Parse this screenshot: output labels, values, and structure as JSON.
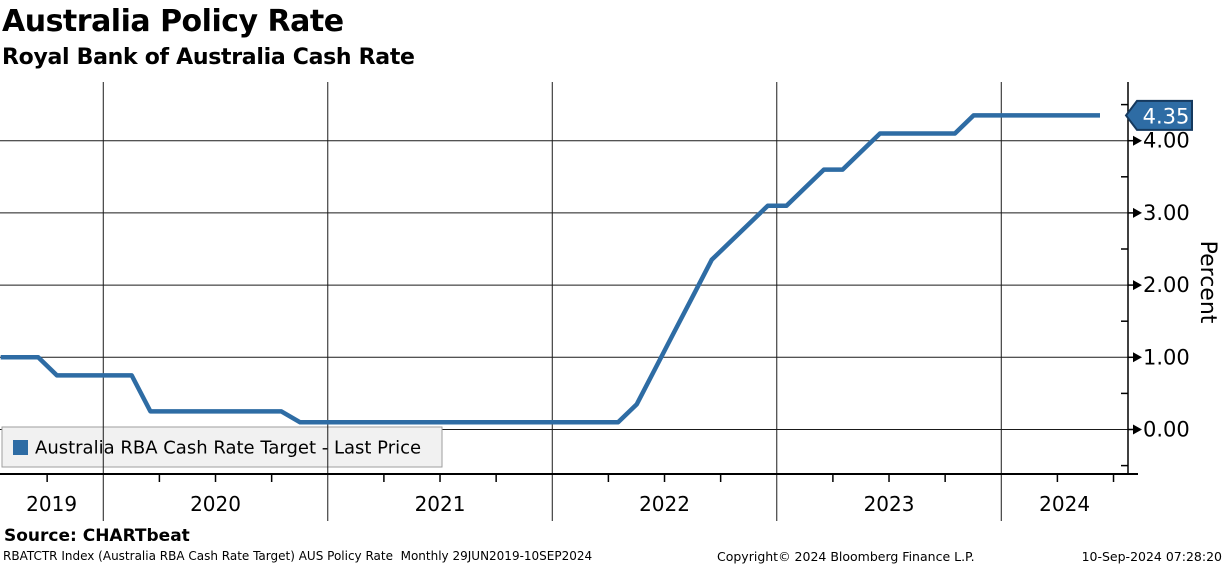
{
  "header": {
    "title": "Australia Policy Rate",
    "subtitle": "Royal Bank of Australia Cash Rate"
  },
  "legend": {
    "label": "Australia RBA Cash Rate Target - Last Price",
    "marker_color": "#2E6CA4"
  },
  "source_line": "Source: CHARTbeat",
  "footer": {
    "left": "RBATCTR Index (Australia RBA Cash Rate Target) AUS Policy Rate  Monthly 29JUN2019-10SEP2024",
    "center": "Copyright© 2024 Bloomberg Finance L.P.",
    "right": "10-Sep-2024 07:28:20"
  },
  "colors": {
    "line": "#2E6CA4",
    "flag_fill": "#2E6CA4",
    "flag_border": "#15395E",
    "flag_text": "#FFFFFF",
    "grid": "#1A1A1A",
    "axis": "#000000",
    "legend_bg": "#F1F1F1",
    "legend_border": "#9E9E9E"
  },
  "chart_data": {
    "type": "line",
    "title": "Australia Policy Rate",
    "subtitle": "Royal Bank of Australia Cash Rate",
    "ylabel": "Percent",
    "xlabel": "",
    "grid": true,
    "legend_position": "bottom-left",
    "last_price": {
      "value": 4.35,
      "label": "4.35"
    },
    "y_axis": {
      "side": "right",
      "ticks": [
        0,
        1,
        2,
        3,
        4
      ],
      "tick_labels": [
        "0.00",
        "1.00",
        "2.00",
        "3.00",
        "4.00"
      ],
      "minor_ticks": [
        -0.5,
        0.5,
        1.5,
        2.5,
        3.5,
        4.5
      ],
      "range_hint": [
        -0.62,
        4.81
      ]
    },
    "x_axis": {
      "range": [
        "2019-06-29",
        "2024-09-10"
      ],
      "year_gridlines": [
        2020,
        2021,
        2022,
        2023,
        2024
      ],
      "year_labels": [
        "2019",
        "2020",
        "2021",
        "2022",
        "2023",
        "2024"
      ],
      "minor_ticks": "quarterly"
    },
    "series": [
      {
        "name": "Australia RBA Cash Rate Target - Last Price",
        "color": "#2E6CA4",
        "points": [
          [
            "2019-07",
            1.0
          ],
          [
            "2019-08",
            1.0
          ],
          [
            "2019-09",
            1.0
          ],
          [
            "2019-10",
            0.75
          ],
          [
            "2019-11",
            0.75
          ],
          [
            "2019-12",
            0.75
          ],
          [
            "2020-01",
            0.75
          ],
          [
            "2020-02",
            0.75
          ],
          [
            "2020-03",
            0.25
          ],
          [
            "2020-04",
            0.25
          ],
          [
            "2020-05",
            0.25
          ],
          [
            "2020-06",
            0.25
          ],
          [
            "2020-07",
            0.25
          ],
          [
            "2020-08",
            0.25
          ],
          [
            "2020-09",
            0.25
          ],
          [
            "2020-10",
            0.25
          ],
          [
            "2020-11",
            0.1
          ],
          [
            "2020-12",
            0.1
          ],
          [
            "2021-01",
            0.1
          ],
          [
            "2021-02",
            0.1
          ],
          [
            "2021-03",
            0.1
          ],
          [
            "2021-04",
            0.1
          ],
          [
            "2021-05",
            0.1
          ],
          [
            "2021-06",
            0.1
          ],
          [
            "2021-07",
            0.1
          ],
          [
            "2021-08",
            0.1
          ],
          [
            "2021-09",
            0.1
          ],
          [
            "2021-10",
            0.1
          ],
          [
            "2021-11",
            0.1
          ],
          [
            "2021-12",
            0.1
          ],
          [
            "2022-01",
            0.1
          ],
          [
            "2022-02",
            0.1
          ],
          [
            "2022-03",
            0.1
          ],
          [
            "2022-04",
            0.1
          ],
          [
            "2022-05",
            0.35
          ],
          [
            "2022-06",
            0.85
          ],
          [
            "2022-07",
            1.35
          ],
          [
            "2022-08",
            1.85
          ],
          [
            "2022-09",
            2.35
          ],
          [
            "2022-10",
            2.6
          ],
          [
            "2022-11",
            2.85
          ],
          [
            "2022-12",
            3.1
          ],
          [
            "2023-01",
            3.1
          ],
          [
            "2023-02",
            3.35
          ],
          [
            "2023-03",
            3.6
          ],
          [
            "2023-04",
            3.6
          ],
          [
            "2023-05",
            3.85
          ],
          [
            "2023-06",
            4.1
          ],
          [
            "2023-07",
            4.1
          ],
          [
            "2023-08",
            4.1
          ],
          [
            "2023-09",
            4.1
          ],
          [
            "2023-10",
            4.1
          ],
          [
            "2023-11",
            4.35
          ],
          [
            "2023-12",
            4.35
          ],
          [
            "2024-01",
            4.35
          ],
          [
            "2024-02",
            4.35
          ],
          [
            "2024-03",
            4.35
          ],
          [
            "2024-04",
            4.35
          ],
          [
            "2024-05",
            4.35
          ],
          [
            "2024-06",
            4.35
          ],
          [
            "2024-07",
            4.35
          ],
          [
            "2024-08",
            4.35
          ],
          [
            "2024-09",
            4.35
          ]
        ]
      }
    ]
  }
}
